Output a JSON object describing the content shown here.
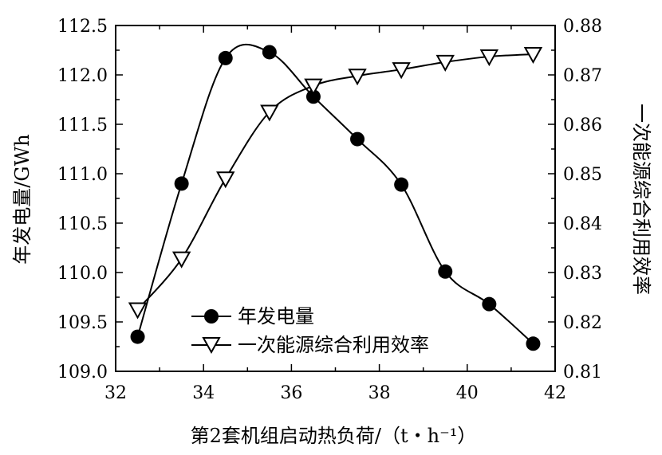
{
  "chart_data": {
    "type": "line",
    "title": "",
    "xlabel": "第2套机组启动热负荷/（t・h⁻¹）",
    "ylabel_left": "年发电量/GWh",
    "ylabel_right": "一次能源综合利用效率",
    "xlim": [
      32,
      42
    ],
    "ylim_left": [
      109.0,
      112.5
    ],
    "ylim_right": [
      0.81,
      0.88
    ],
    "xticks": [
      "32",
      "34",
      "36",
      "38",
      "40",
      "42"
    ],
    "yticks_left": [
      "109.0",
      "109.5",
      "110.0",
      "110.5",
      "111.0",
      "111.5",
      "112.0",
      "112.5"
    ],
    "yticks_right": [
      "0.81",
      "0.82",
      "0.83",
      "0.84",
      "0.85",
      "0.86",
      "0.87",
      "0.88"
    ],
    "grid": false,
    "legend_position": "bottom-left",
    "series": [
      {
        "name": "年发电量",
        "axis": "left",
        "marker": "filled-circle",
        "x": [
          32.5,
          33.5,
          34.5,
          35.5,
          36.5,
          37.5,
          38.5,
          39.5,
          40.5,
          41.5
        ],
        "y": [
          109.35,
          110.9,
          112.17,
          112.23,
          111.78,
          111.35,
          110.89,
          110.01,
          109.68,
          109.28
        ]
      },
      {
        "name": "一次能源综合利用效率",
        "axis": "right",
        "marker": "open-triangle-down",
        "x": [
          32.5,
          33.5,
          34.5,
          35.5,
          36.5,
          37.5,
          38.5,
          39.5,
          40.5,
          41.5
        ],
        "y": [
          0.8225,
          0.8328,
          0.849,
          0.8625,
          0.8678,
          0.8698,
          0.8711,
          0.8726,
          0.8737,
          0.8742
        ]
      }
    ]
  }
}
